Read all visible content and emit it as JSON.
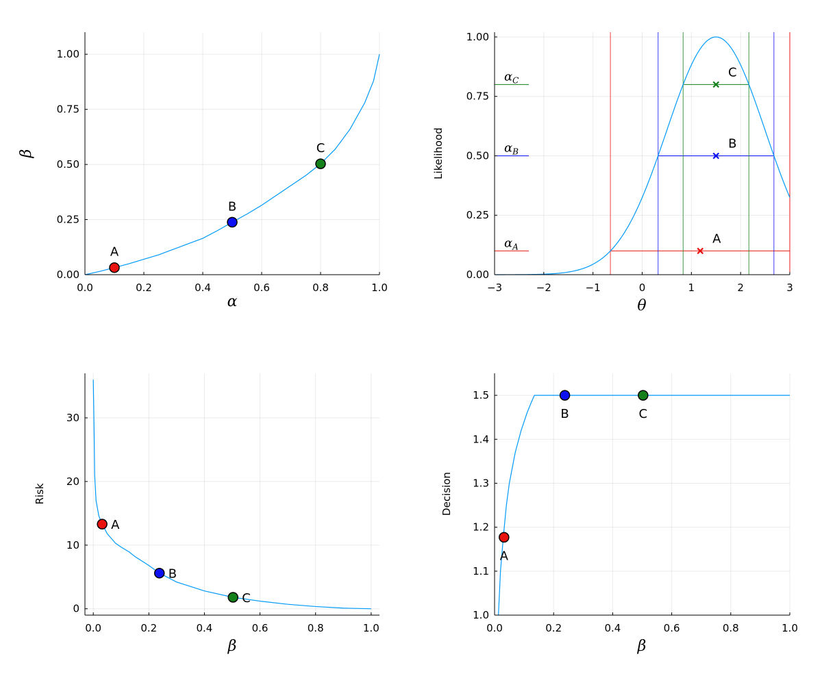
{
  "chart_data": [
    {
      "id": "alpha-beta",
      "type": "line",
      "title": "",
      "xlabel": "α",
      "ylabel": "β",
      "xlim": [
        0,
        1
      ],
      "ylim": [
        0,
        1.1
      ],
      "xticks": [
        0,
        0.2,
        0.4,
        0.6,
        0.8,
        1.0
      ],
      "xtick_labels": [
        "0.0",
        "0.2",
        "0.4",
        "0.6",
        "0.8",
        "1.0"
      ],
      "yticks": [
        0,
        0.25,
        0.5,
        0.75,
        1.0
      ],
      "ytick_labels": [
        "0.00",
        "0.25",
        "0.50",
        "0.75",
        "1.00"
      ],
      "grid": true,
      "legend": "none",
      "series": [
        {
          "color": "#009AFA",
          "x": [
            0,
            0.05,
            0.1,
            0.15,
            0.2,
            0.25,
            0.3,
            0.35,
            0.4,
            0.45,
            0.5,
            0.55,
            0.6,
            0.65,
            0.7,
            0.75,
            0.8,
            0.85,
            0.9,
            0.95,
            0.98,
            1.0
          ],
          "y": [
            0,
            0.015,
            0.032,
            0.05,
            0.07,
            0.09,
            0.115,
            0.14,
            0.165,
            0.2,
            0.238,
            0.275,
            0.315,
            0.36,
            0.405,
            0.45,
            0.503,
            0.57,
            0.66,
            0.78,
            0.88,
            1.0
          ]
        }
      ],
      "points": [
        {
          "label": "A",
          "x": 0.1,
          "y": 0.032,
          "color": "#E8120F",
          "label_pos": "top"
        },
        {
          "label": "B",
          "x": 0.5,
          "y": 0.238,
          "color": "#0D10F2",
          "label_pos": "top"
        },
        {
          "label": "C",
          "x": 0.8,
          "y": 0.503,
          "color": "#13801A",
          "label_pos": "top"
        }
      ]
    },
    {
      "id": "likelihood",
      "type": "line",
      "title": "",
      "xlabel": "θ",
      "ylabel": "Likelihood",
      "xlim": [
        -3,
        3
      ],
      "ylim": [
        0,
        1.02
      ],
      "xticks": [
        -3,
        -2,
        -1,
        0,
        1,
        2,
        3
      ],
      "xtick_labels": [
        "−3",
        "−2",
        "−1",
        "0",
        "1",
        "2",
        "3"
      ],
      "yticks": [
        0,
        0.25,
        0.5,
        0.75,
        1.0
      ],
      "ytick_labels": [
        "0.00",
        "0.25",
        "0.50",
        "0.75",
        "1.00"
      ],
      "grid": true,
      "legend": "none",
      "curve": {
        "type": "gaussian",
        "mean": 1.5,
        "sigma": 1.0,
        "color": "#009AFA"
      },
      "levels": [
        {
          "name": "A",
          "alpha_base": "α",
          "alpha_sub": "A",
          "alpha": 0.1,
          "color": "#E8120F",
          "lo": -0.646,
          "hi": 3.0,
          "marker_x": 1.18
        },
        {
          "name": "B",
          "alpha_base": "α",
          "alpha_sub": "B",
          "alpha": 0.5,
          "color": "#0D10F2",
          "lo": 0.323,
          "hi": 2.677,
          "marker_x": 1.5
        },
        {
          "name": "C",
          "alpha_base": "α",
          "alpha_sub": "C",
          "alpha": 0.8,
          "color": "#13801A",
          "lo": 0.832,
          "hi": 2.168,
          "marker_x": 1.5
        }
      ],
      "extra_vlines": [
        {
          "x": 3.0,
          "color": "#E8120F"
        }
      ]
    },
    {
      "id": "risk",
      "type": "line",
      "title": "",
      "xlabel": "β",
      "ylabel": "Risk",
      "xlim": [
        -0.03,
        1.03
      ],
      "ylim": [
        -1,
        37
      ],
      "xticks": [
        0,
        0.2,
        0.4,
        0.6,
        0.8,
        1.0
      ],
      "xtick_labels": [
        "0.0",
        "0.2",
        "0.4",
        "0.6",
        "0.8",
        "1.0"
      ],
      "yticks": [
        0,
        10,
        20,
        30
      ],
      "ytick_labels": [
        "0",
        "10",
        "20",
        "30"
      ],
      "grid": true,
      "legend": "none",
      "series": [
        {
          "color": "#009AFA",
          "x": [
            0.0,
            0.003,
            0.005,
            0.01,
            0.02,
            0.032,
            0.05,
            0.08,
            0.1,
            0.13,
            0.15,
            0.2,
            0.238,
            0.3,
            0.4,
            0.503,
            0.6,
            0.7,
            0.8,
            0.9,
            1.0
          ],
          "y": [
            36,
            28,
            21,
            17,
            14.6,
            13.3,
            11.8,
            10.3,
            9.7,
            8.9,
            8.2,
            6.8,
            5.6,
            4.2,
            2.8,
            1.8,
            1.2,
            0.7,
            0.35,
            0.1,
            0.0
          ]
        }
      ],
      "points": [
        {
          "label": "A",
          "x": 0.032,
          "y": 13.3,
          "color": "#E8120F",
          "label_pos": "right"
        },
        {
          "label": "B",
          "x": 0.238,
          "y": 5.6,
          "color": "#0D10F2",
          "label_pos": "right"
        },
        {
          "label": "C",
          "x": 0.503,
          "y": 1.8,
          "color": "#13801A",
          "label_pos": "right"
        }
      ]
    },
    {
      "id": "decision",
      "type": "line",
      "title": "",
      "xlabel": "β",
      "ylabel": "Decision",
      "xlim": [
        0,
        1
      ],
      "ylim": [
        1.0,
        1.55
      ],
      "xticks": [
        0,
        0.2,
        0.4,
        0.6,
        0.8,
        1.0
      ],
      "xtick_labels": [
        "0.0",
        "0.2",
        "0.4",
        "0.6",
        "0.8",
        "1.0"
      ],
      "yticks": [
        1.0,
        1.1,
        1.2,
        1.3,
        1.4,
        1.5
      ],
      "ytick_labels": [
        "1.0",
        "1.1",
        "1.2",
        "1.3",
        "1.4",
        "1.5"
      ],
      "grid": true,
      "legend": "none",
      "series": [
        {
          "color": "#009AFA",
          "x": [
            0.013,
            0.02,
            0.03,
            0.04,
            0.05,
            0.07,
            0.09,
            0.11,
            0.125,
            0.135,
            0.2,
            0.4,
            0.6,
            0.8,
            1.0
          ],
          "y": [
            1.0,
            1.1,
            1.18,
            1.25,
            1.3,
            1.37,
            1.42,
            1.46,
            1.485,
            1.5,
            1.5,
            1.5,
            1.5,
            1.5,
            1.5
          ]
        }
      ],
      "points": [
        {
          "label": "A",
          "x": 0.032,
          "y": 1.177,
          "color": "#E8120F",
          "label_pos": "bottom"
        },
        {
          "label": "B",
          "x": 0.238,
          "y": 1.5,
          "color": "#0D10F2",
          "label_pos": "bottom"
        },
        {
          "label": "C",
          "x": 0.503,
          "y": 1.5,
          "color": "#13801A",
          "label_pos": "bottom"
        }
      ]
    }
  ]
}
